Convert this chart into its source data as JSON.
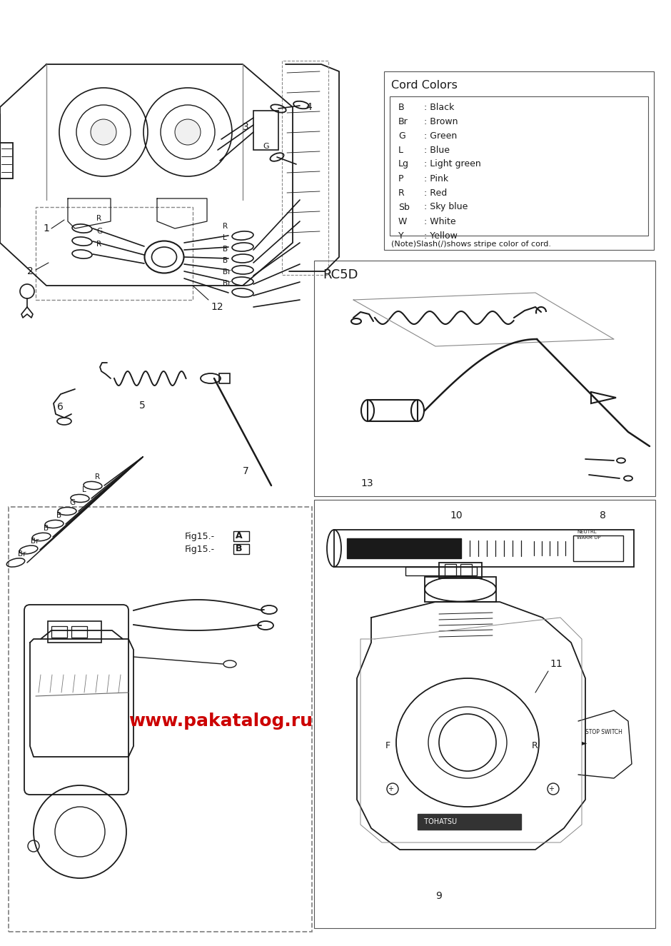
{
  "background_color": "#ffffff",
  "cord_colors_title": "Cord Colors",
  "cord_colors": [
    [
      "B",
      "Black"
    ],
    [
      "Br",
      "Brown"
    ],
    [
      "G",
      "Green"
    ],
    [
      "L",
      "Blue"
    ],
    [
      "Lg",
      "Light green"
    ],
    [
      "P",
      "Pink"
    ],
    [
      "R",
      "Red"
    ],
    [
      "Sb",
      "Sky blue"
    ],
    [
      "W",
      "White"
    ],
    [
      "Y",
      "Yellow"
    ]
  ],
  "cord_note": "(Note)Slash(/)shows stripe color of cord.",
  "rc5d_label": "RC5D",
  "watermark_text": "www.pakatalog.ru",
  "watermark_color": "#cc0000",
  "fig15_labels": [
    "Fig15.-",
    "Fig15.-"
  ],
  "fig15_ab": [
    "A",
    "B"
  ],
  "line_color": "#1a1a1a",
  "box_border_color": "#888888",
  "gray_light": "#d0d0d0"
}
